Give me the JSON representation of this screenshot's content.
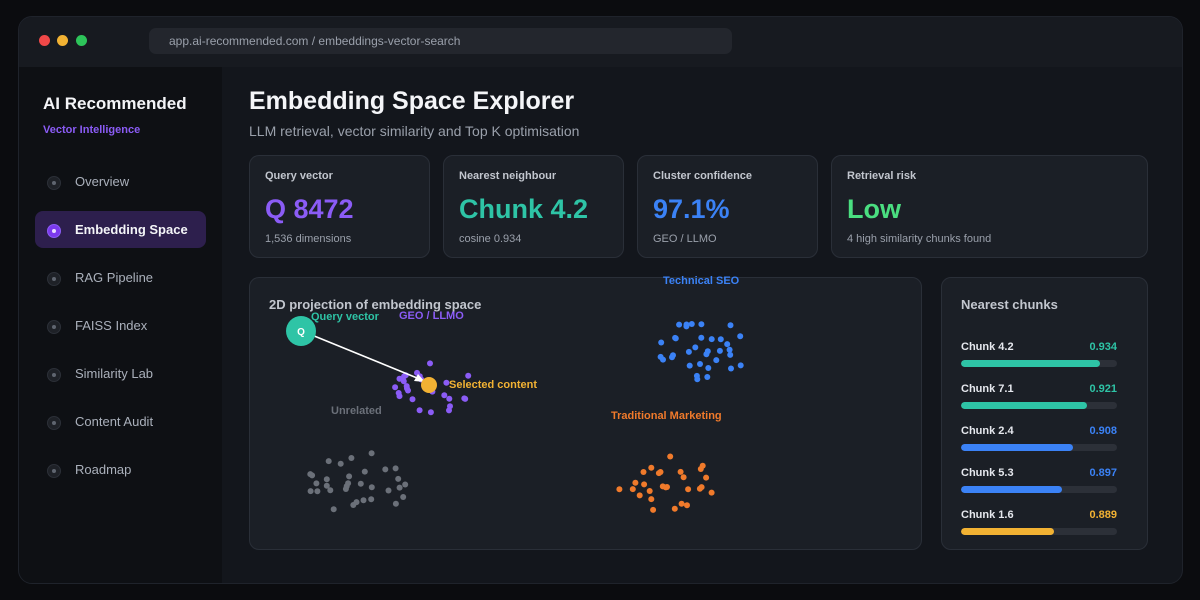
{
  "browser": {
    "url": "app.ai-recommended.com / embeddings-vector-search"
  },
  "sidebar": {
    "brand": "AI Recommended",
    "subtitle": "Vector Intelligence",
    "items": [
      {
        "label": "Overview",
        "active": false
      },
      {
        "label": "Embedding Space",
        "active": true
      },
      {
        "label": "RAG Pipeline",
        "active": false
      },
      {
        "label": "FAISS Index",
        "active": false
      },
      {
        "label": "Similarity Lab",
        "active": false
      },
      {
        "label": "Content Audit",
        "active": false
      },
      {
        "label": "Roadmap",
        "active": false
      }
    ]
  },
  "header": {
    "title": "Embedding Space Explorer",
    "subtitle": "LLM retrieval, vector similarity and Top K optimisation"
  },
  "stats": [
    {
      "label": "Query vector",
      "value": "Q 8472",
      "sub": "1,536 dimensions",
      "color": "#8b5cf6"
    },
    {
      "label": "Nearest neighbour",
      "value": "Chunk 4.2",
      "sub": "cosine 0.934",
      "color": "#2ec4a6"
    },
    {
      "label": "Cluster confidence",
      "value": "97.1%",
      "sub": "GEO / LLMO",
      "color": "#3b82f6"
    },
    {
      "label": "Retrieval risk",
      "value": "Low",
      "sub": "4 high similarity chunks found",
      "color": "#4ade80"
    }
  ],
  "projection": {
    "title": "2D projection of embedding space",
    "query_marker": "Q",
    "labels": {
      "query": "Query vector",
      "geo": "GEO / LLMO",
      "selected": "Selected content",
      "technical": "Technical SEO",
      "unrelated": "Unrelated",
      "marketing": "Traditional Marketing"
    },
    "colors": {
      "query": "#2ec4a6",
      "geo": "#8b5cf6",
      "selected": "#f2b233",
      "technical": "#3b82f6",
      "unrelated": "#6b7079",
      "marketing": "#f07a2b"
    }
  },
  "nearest": {
    "title": "Nearest chunks",
    "items": [
      {
        "name": "Chunk 4.2",
        "score": "0.934",
        "value": 0.934,
        "color": "#2ec4a6"
      },
      {
        "name": "Chunk 7.1",
        "score": "0.921",
        "value": 0.921,
        "color": "#2ec4a6"
      },
      {
        "name": "Chunk 2.4",
        "score": "0.908",
        "value": 0.908,
        "color": "#3b82f6"
      },
      {
        "name": "Chunk 5.3",
        "score": "0.897",
        "value": 0.897,
        "color": "#3b82f6"
      },
      {
        "name": "Chunk 1.6",
        "score": "0.889",
        "value": 0.889,
        "color": "#f2b233"
      }
    ]
  }
}
